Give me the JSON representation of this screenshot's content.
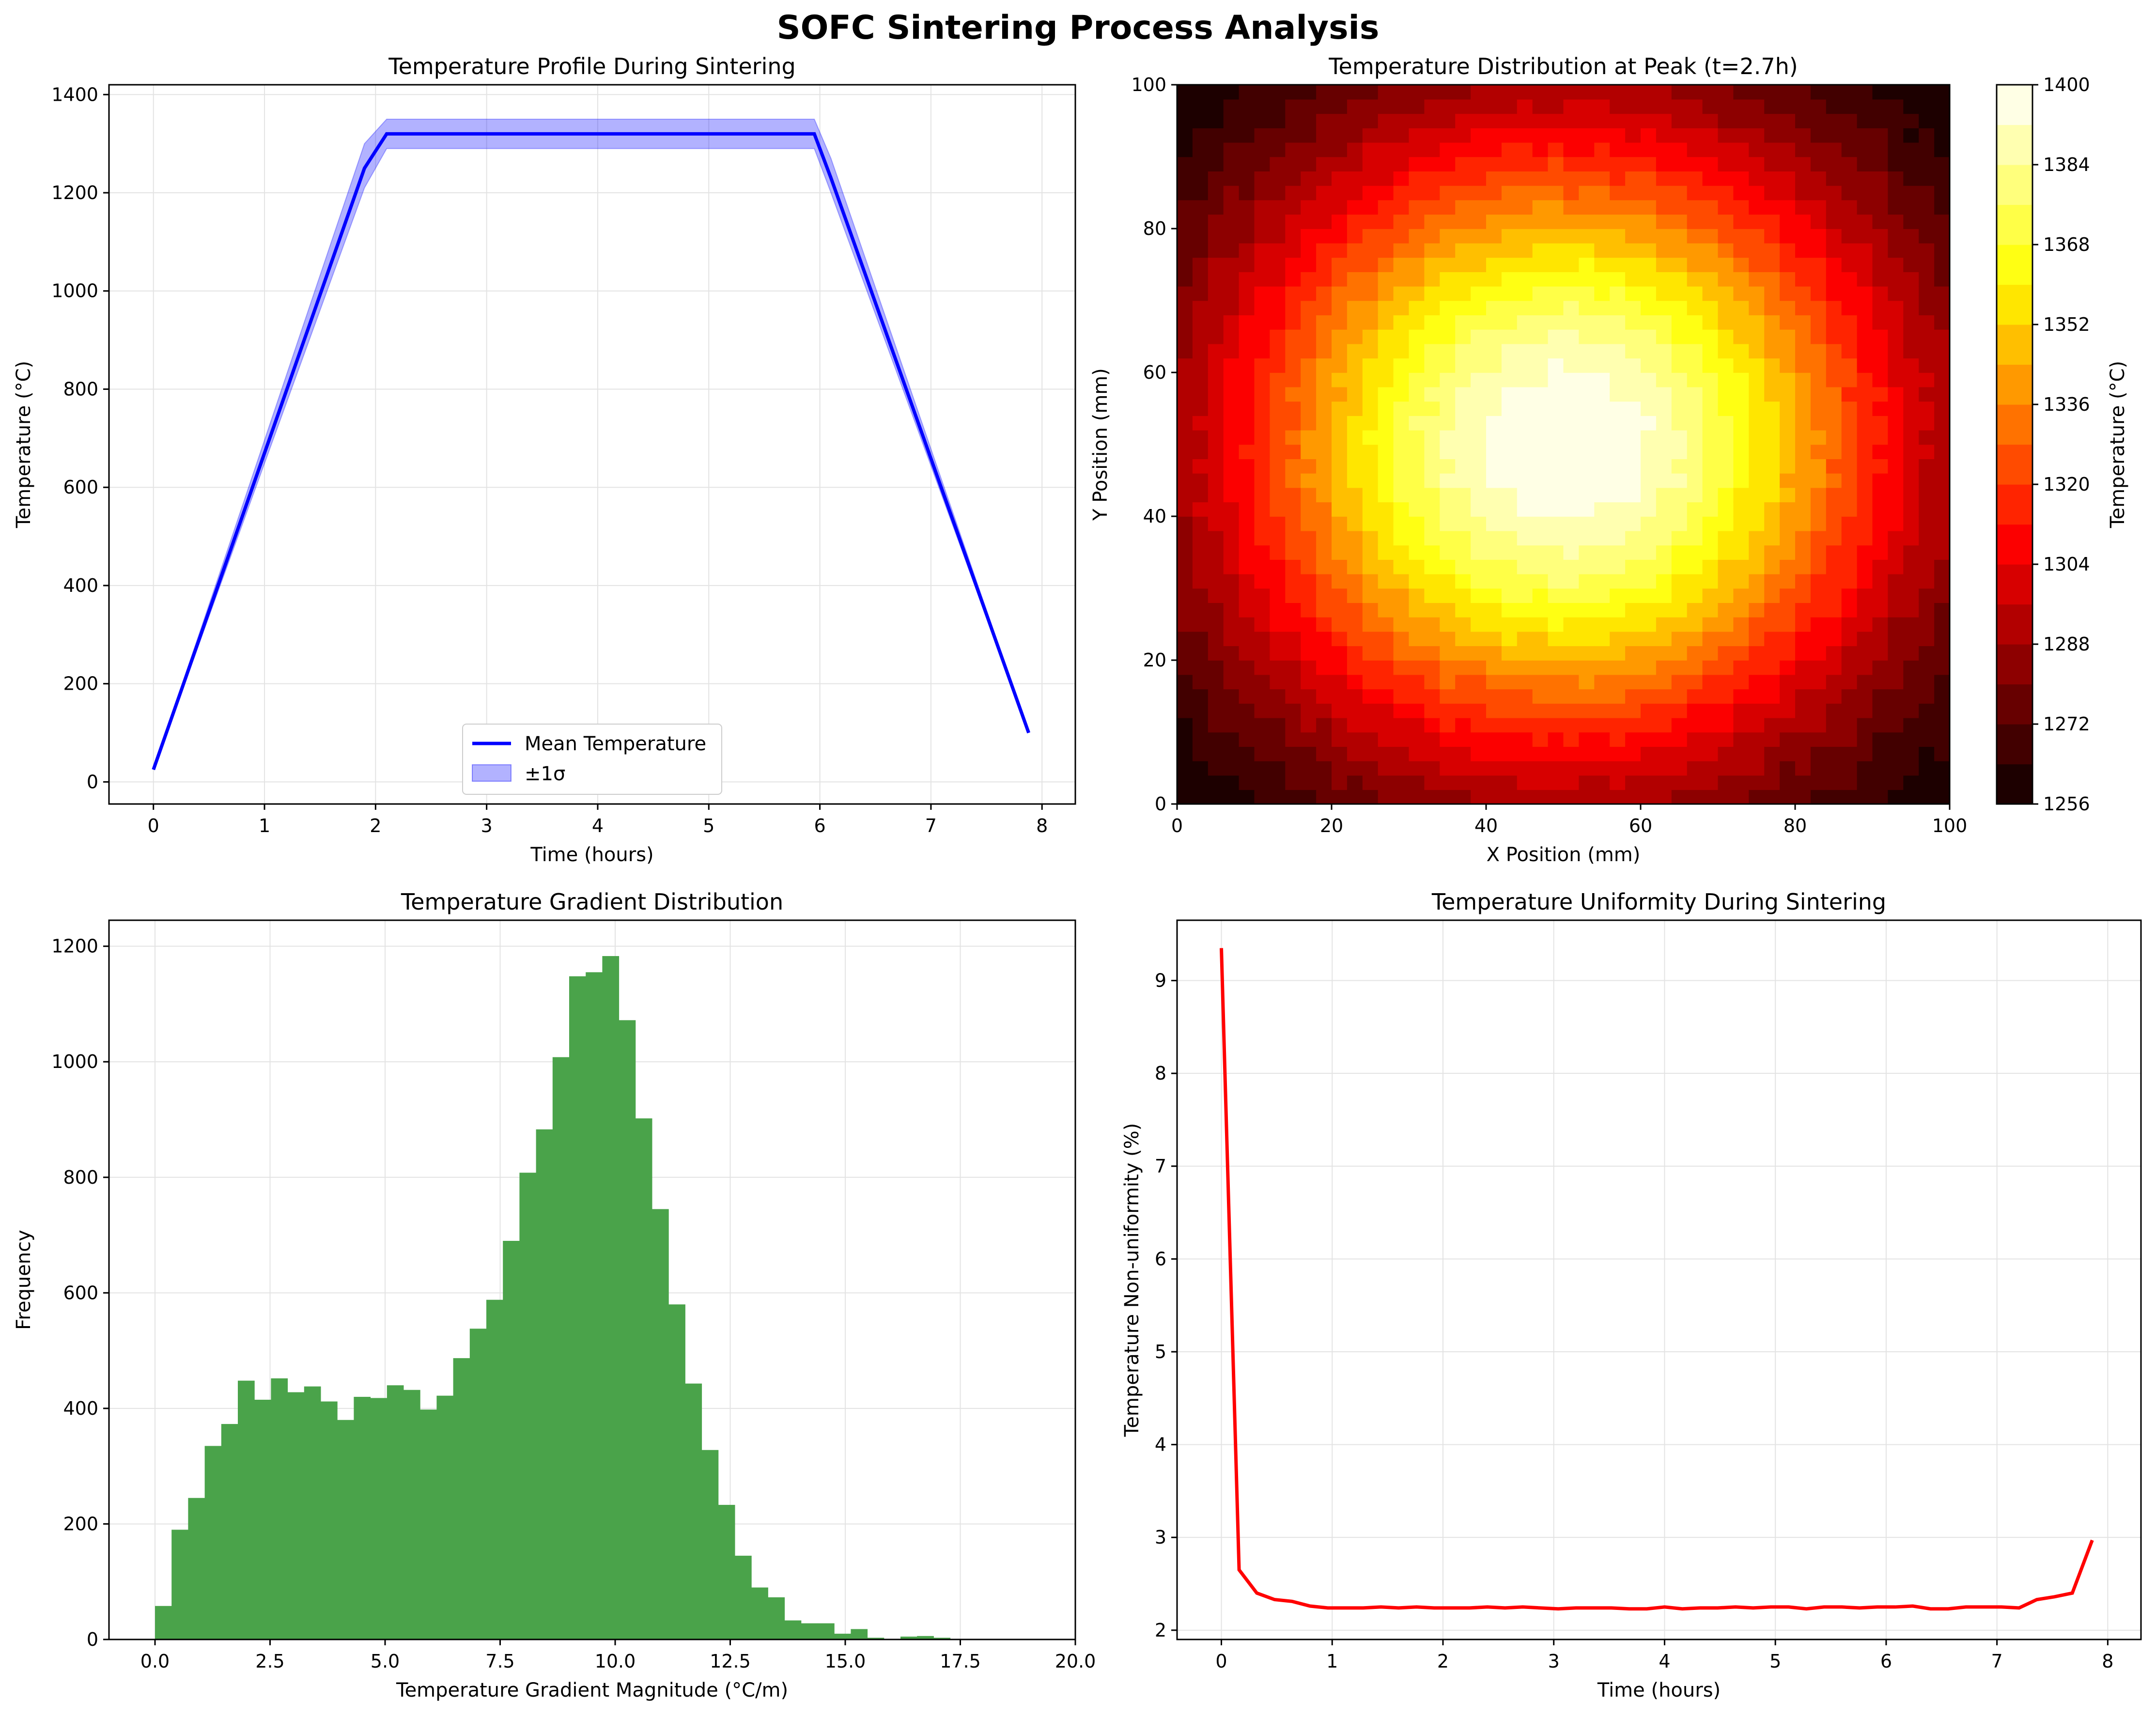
{
  "figure_title": "SOFC Sintering Process Analysis",
  "chart_data": [
    {
      "type": "line",
      "title": "Temperature Profile During Sintering",
      "xlabel": "Time (hours)",
      "ylabel": "Temperature (°C)",
      "xlim": [
        -0.4,
        8.3
      ],
      "ylim": [
        -45,
        1420
      ],
      "xticks": [
        0,
        1,
        2,
        3,
        4,
        5,
        6,
        7,
        8
      ],
      "yticks": [
        0,
        200,
        400,
        600,
        800,
        1000,
        1200,
        1400
      ],
      "grid": true,
      "legend_position": "lower center",
      "series": [
        {
          "name": "Mean Temperature",
          "color": "#0000ff",
          "x": [
            0,
            1.9,
            2.1,
            5.95,
            6.1,
            7.88
          ],
          "y": [
            25,
            1250,
            1320,
            1320,
            1230,
            100
          ]
        },
        {
          "name": "±1σ",
          "color": "#0000ff",
          "kind": "band",
          "x": [
            0,
            1.9,
            2.1,
            5.95,
            6.1,
            7.88
          ],
          "lower": [
            25,
            1210,
            1290,
            1290,
            1200,
            100
          ],
          "upper": [
            25,
            1300,
            1350,
            1350,
            1270,
            100
          ]
        }
      ]
    },
    {
      "type": "heatmap",
      "title": "Temperature Distribution at Peak (t=2.7h)",
      "xlabel": "X Position (mm)",
      "ylabel": "Y Position (mm)",
      "xlim": [
        0,
        100
      ],
      "ylim": [
        0,
        100
      ],
      "xticks": [
        0,
        20,
        40,
        60,
        80,
        100
      ],
      "yticks": [
        0,
        20,
        40,
        60,
        80,
        100
      ],
      "colorbar_label": "Temperature (°C)",
      "colorbar_ticks": [
        1256,
        1272,
        1288,
        1304,
        1320,
        1336,
        1352,
        1368,
        1384,
        1400
      ],
      "levels": [
        1256,
        1264,
        1272,
        1280,
        1288,
        1296,
        1304,
        1312,
        1320,
        1328,
        1336,
        1344,
        1352,
        1360,
        1368,
        1376,
        1384,
        1392,
        1400
      ],
      "peak_center_mm": [
        50,
        50
      ],
      "peak_value": 1400,
      "corner_value": 1256,
      "colormap": "hot"
    },
    {
      "type": "bar",
      "title": "Temperature Gradient Distribution",
      "xlabel": "Temperature Gradient Magnitude (°C/m)",
      "ylabel": "Frequency",
      "xlim": [
        -1,
        20
      ],
      "ylim": [
        0,
        1245
      ],
      "xticks": [
        "0.0",
        "2.5",
        "5.0",
        "7.5",
        "10.0",
        "12.5",
        "15.0",
        "17.5",
        "20.0"
      ],
      "yticks": [
        0,
        200,
        400,
        600,
        800,
        1000,
        1200
      ],
      "color": "#4aa34a",
      "bin_start": 0,
      "bin_width": 0.36,
      "values": [
        58,
        190,
        245,
        335,
        373,
        448,
        415,
        452,
        428,
        438,
        412,
        380,
        420,
        418,
        440,
        432,
        398,
        422,
        487,
        538,
        588,
        690,
        808,
        883,
        1008,
        1148,
        1155,
        1183,
        1072,
        902,
        745,
        580,
        443,
        328,
        233,
        145,
        90,
        73,
        33,
        28,
        28,
        10,
        18,
        3,
        0,
        5,
        6,
        3,
        0,
        1,
        1,
        0,
        1
      ]
    },
    {
      "type": "line",
      "title": "Temperature Uniformity During Sintering",
      "xlabel": "Time (hours)",
      "ylabel": "Temperature Non-uniformity (%)",
      "xlim": [
        -0.4,
        8.3
      ],
      "ylim": [
        1.9,
        9.65
      ],
      "xticks": [
        0,
        1,
        2,
        3,
        4,
        5,
        6,
        7,
        8
      ],
      "yticks": [
        2,
        3,
        4,
        5,
        6,
        7,
        8,
        9
      ],
      "grid": true,
      "series": [
        {
          "color": "#ff0000",
          "x": [
            0,
            0.16,
            0.32,
            0.48,
            0.64,
            0.8,
            0.96,
            1.12,
            1.28,
            1.44,
            1.6,
            1.76,
            1.92,
            2.08,
            2.24,
            2.4,
            2.56,
            2.72,
            2.88,
            3.04,
            3.2,
            3.36,
            3.52,
            3.68,
            3.84,
            4.0,
            4.16,
            4.32,
            4.48,
            4.64,
            4.8,
            4.96,
            5.12,
            5.28,
            5.44,
            5.6,
            5.76,
            5.92,
            6.08,
            6.24,
            6.4,
            6.56,
            6.72,
            6.88,
            7.04,
            7.2,
            7.36,
            7.52,
            7.68,
            7.86
          ],
          "y": [
            9.35,
            2.65,
            2.4,
            2.33,
            2.31,
            2.26,
            2.24,
            2.24,
            2.24,
            2.25,
            2.24,
            2.25,
            2.24,
            2.24,
            2.24,
            2.25,
            2.24,
            2.25,
            2.24,
            2.23,
            2.24,
            2.24,
            2.24,
            2.23,
            2.23,
            2.25,
            2.23,
            2.24,
            2.24,
            2.25,
            2.24,
            2.25,
            2.25,
            2.23,
            2.25,
            2.25,
            2.24,
            2.25,
            2.25,
            2.26,
            2.23,
            2.23,
            2.25,
            2.25,
            2.25,
            2.24,
            2.33,
            2.36,
            2.4,
            2.97
          ]
        }
      ]
    }
  ]
}
